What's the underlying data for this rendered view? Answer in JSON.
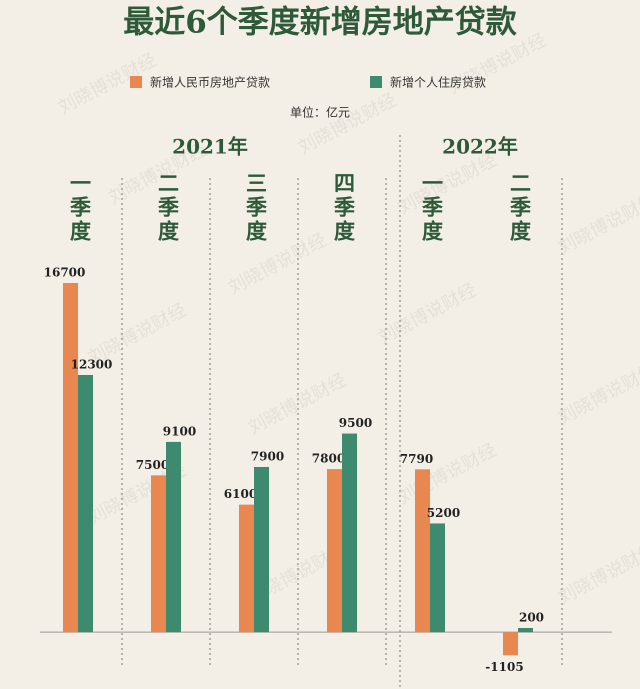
{
  "chart_data": {
    "type": "bar",
    "title": "最近6个季度新增房地产贷款",
    "unit": "单位：亿元",
    "year_labels": [
      "2021年",
      "2022年"
    ],
    "categories": [
      "一季度",
      "二季度",
      "三季度",
      "四季度",
      "一季度",
      "二季度"
    ],
    "series": [
      {
        "name": "新增人民币房地产贷款",
        "color": "#e8874f",
        "values": [
          16700,
          7500,
          6100,
          7800,
          7790,
          -1105
        ]
      },
      {
        "name": "新增个人住房贷款",
        "color": "#3d8a6f",
        "values": [
          12300,
          9100,
          7900,
          9500,
          5200,
          200
        ]
      }
    ],
    "ylim": [
      -2000,
      20000
    ],
    "watermark": "刘晓博说财经"
  }
}
